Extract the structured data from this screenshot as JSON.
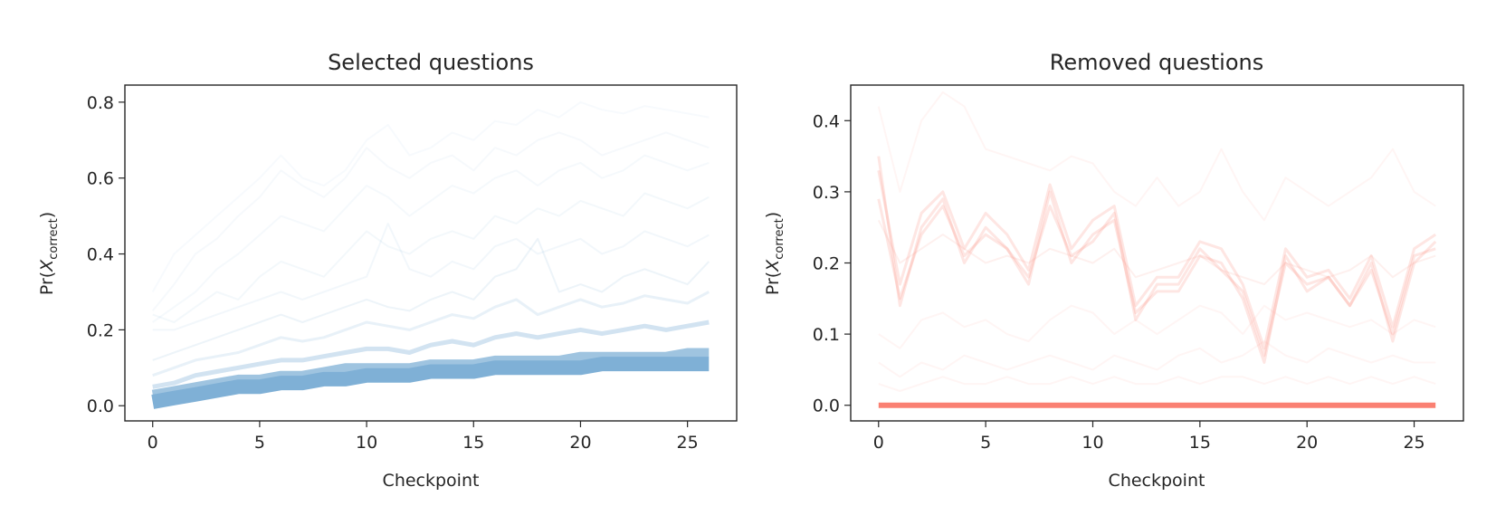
{
  "chart_data": [
    {
      "type": "line",
      "title": "Selected questions",
      "xlabel": "Checkpoint",
      "ylabel": {
        "prefix": "Pr(",
        "var": "X",
        "sub": "correct",
        "suffix": ")"
      },
      "xlim": [
        -1.3,
        27.3
      ],
      "ylim": [
        -0.04,
        0.845
      ],
      "xticks": [
        0,
        5,
        10,
        15,
        20,
        25
      ],
      "xtick_labels": [
        "0",
        "5",
        "10",
        "15",
        "20",
        "25"
      ],
      "yticks": [
        0.0,
        0.2,
        0.4,
        0.6,
        0.8
      ],
      "ytick_labels": [
        "0.0",
        "0.2",
        "0.4",
        "0.6",
        "0.8"
      ],
      "color": "#7fb0d6",
      "x": [
        0,
        1,
        2,
        3,
        4,
        5,
        6,
        7,
        8,
        9,
        10,
        11,
        12,
        13,
        14,
        15,
        16,
        17,
        18,
        19,
        20,
        21,
        22,
        23,
        24,
        25,
        26
      ],
      "series": [
        {
          "values": [
            0.3,
            0.4,
            0.45,
            0.5,
            0.55,
            0.6,
            0.66,
            0.6,
            0.58,
            0.62,
            0.7,
            0.74,
            0.66,
            0.68,
            0.72,
            0.7,
            0.75,
            0.74,
            0.78,
            0.76,
            0.8,
            0.78,
            0.77,
            0.79,
            0.78,
            0.77,
            0.76
          ]
        },
        {
          "values": [
            0.25,
            0.32,
            0.4,
            0.44,
            0.5,
            0.55,
            0.62,
            0.58,
            0.55,
            0.6,
            0.68,
            0.63,
            0.6,
            0.64,
            0.66,
            0.62,
            0.68,
            0.66,
            0.7,
            0.72,
            0.7,
            0.66,
            0.68,
            0.7,
            0.72,
            0.7,
            0.68
          ]
        },
        {
          "values": [
            0.22,
            0.26,
            0.3,
            0.36,
            0.4,
            0.45,
            0.5,
            0.48,
            0.46,
            0.52,
            0.58,
            0.55,
            0.5,
            0.54,
            0.58,
            0.56,
            0.6,
            0.62,
            0.58,
            0.62,
            0.64,
            0.6,
            0.62,
            0.66,
            0.64,
            0.62,
            0.64
          ]
        },
        {
          "values": [
            0.24,
            0.22,
            0.26,
            0.3,
            0.28,
            0.34,
            0.38,
            0.36,
            0.34,
            0.4,
            0.46,
            0.42,
            0.4,
            0.44,
            0.46,
            0.44,
            0.5,
            0.48,
            0.52,
            0.5,
            0.54,
            0.52,
            0.5,
            0.56,
            0.54,
            0.52,
            0.55
          ]
        },
        {
          "values": [
            0.2,
            0.2,
            0.22,
            0.24,
            0.26,
            0.28,
            0.3,
            0.28,
            0.3,
            0.32,
            0.34,
            0.48,
            0.36,
            0.34,
            0.38,
            0.36,
            0.42,
            0.44,
            0.4,
            0.42,
            0.44,
            0.4,
            0.42,
            0.46,
            0.44,
            0.42,
            0.45
          ]
        },
        {
          "values": [
            0.12,
            0.14,
            0.16,
            0.18,
            0.2,
            0.22,
            0.24,
            0.22,
            0.24,
            0.26,
            0.28,
            0.26,
            0.25,
            0.28,
            0.3,
            0.28,
            0.34,
            0.36,
            0.44,
            0.3,
            0.32,
            0.3,
            0.34,
            0.36,
            0.34,
            0.32,
            0.38
          ]
        },
        {
          "values": [
            0.08,
            0.1,
            0.12,
            0.13,
            0.14,
            0.16,
            0.18,
            0.17,
            0.18,
            0.2,
            0.22,
            0.21,
            0.2,
            0.22,
            0.24,
            0.23,
            0.26,
            0.28,
            0.24,
            0.26,
            0.28,
            0.26,
            0.27,
            0.29,
            0.28,
            0.27,
            0.3
          ]
        },
        {
          "values": [
            0.05,
            0.06,
            0.08,
            0.09,
            0.1,
            0.11,
            0.12,
            0.12,
            0.13,
            0.14,
            0.15,
            0.15,
            0.14,
            0.16,
            0.17,
            0.16,
            0.18,
            0.19,
            0.18,
            0.19,
            0.2,
            0.19,
            0.2,
            0.21,
            0.2,
            0.21,
            0.22
          ]
        },
        {
          "values": [
            0.03,
            0.04,
            0.05,
            0.06,
            0.07,
            0.07,
            0.08,
            0.08,
            0.09,
            0.1,
            0.1,
            0.1,
            0.1,
            0.11,
            0.11,
            0.11,
            0.12,
            0.12,
            0.12,
            0.12,
            0.13,
            0.13,
            0.13,
            0.13,
            0.13,
            0.14,
            0.14
          ]
        },
        {
          "values": [
            0.01,
            0.02,
            0.03,
            0.04,
            0.05,
            0.05,
            0.06,
            0.06,
            0.07,
            0.07,
            0.08,
            0.08,
            0.08,
            0.09,
            0.09,
            0.09,
            0.1,
            0.1,
            0.1,
            0.1,
            0.1,
            0.11,
            0.11,
            0.11,
            0.11,
            0.11,
            0.11
          ]
        }
      ]
    },
    {
      "type": "line",
      "title": "Removed questions",
      "xlabel": "Checkpoint",
      "ylabel": {
        "prefix": "Pr(",
        "var": "X",
        "sub": "correct",
        "suffix": ")"
      },
      "xlim": [
        -1.3,
        27.3
      ],
      "ylim": [
        -0.022,
        0.45
      ],
      "xticks": [
        0,
        5,
        10,
        15,
        20,
        25
      ],
      "xtick_labels": [
        "0",
        "5",
        "10",
        "15",
        "20",
        "25"
      ],
      "yticks": [
        0.0,
        0.1,
        0.2,
        0.3,
        0.4
      ],
      "ytick_labels": [
        "0.0",
        "0.1",
        "0.2",
        "0.3",
        "0.4"
      ],
      "color": "#fa8072",
      "x": [
        0,
        1,
        2,
        3,
        4,
        5,
        6,
        7,
        8,
        9,
        10,
        11,
        12,
        13,
        14,
        15,
        16,
        17,
        18,
        19,
        20,
        21,
        22,
        23,
        24,
        25,
        26
      ],
      "series": [
        {
          "values": [
            0.42,
            0.3,
            0.4,
            0.44,
            0.42,
            0.36,
            0.35,
            0.34,
            0.33,
            0.35,
            0.34,
            0.3,
            0.28,
            0.32,
            0.28,
            0.3,
            0.36,
            0.3,
            0.26,
            0.32,
            0.3,
            0.28,
            0.3,
            0.32,
            0.36,
            0.3,
            0.28
          ]
        },
        {
          "values": [
            0.35,
            0.14,
            0.25,
            0.29,
            0.2,
            0.25,
            0.22,
            0.17,
            0.3,
            0.2,
            0.24,
            0.26,
            0.13,
            0.16,
            0.16,
            0.21,
            0.2,
            0.15,
            0.06,
            0.21,
            0.16,
            0.18,
            0.14,
            0.2,
            0.09,
            0.2,
            0.23
          ]
        },
        {
          "values": [
            0.33,
            0.17,
            0.27,
            0.3,
            0.22,
            0.27,
            0.24,
            0.19,
            0.31,
            0.22,
            0.26,
            0.28,
            0.14,
            0.18,
            0.18,
            0.23,
            0.22,
            0.17,
            0.08,
            0.22,
            0.18,
            0.19,
            0.15,
            0.21,
            0.11,
            0.22,
            0.24
          ]
        },
        {
          "values": [
            0.29,
            0.15,
            0.24,
            0.28,
            0.21,
            0.24,
            0.22,
            0.18,
            0.28,
            0.21,
            0.23,
            0.27,
            0.12,
            0.17,
            0.17,
            0.22,
            0.19,
            0.16,
            0.07,
            0.2,
            0.17,
            0.18,
            0.14,
            0.19,
            0.1,
            0.21,
            0.22
          ]
        },
        {
          "values": [
            0.26,
            0.2,
            0.22,
            0.24,
            0.22,
            0.2,
            0.21,
            0.2,
            0.22,
            0.21,
            0.2,
            0.22,
            0.18,
            0.19,
            0.2,
            0.21,
            0.19,
            0.18,
            0.17,
            0.2,
            0.19,
            0.18,
            0.19,
            0.21,
            0.18,
            0.2,
            0.21
          ]
        },
        {
          "values": [
            0.1,
            0.08,
            0.12,
            0.13,
            0.11,
            0.12,
            0.1,
            0.09,
            0.12,
            0.14,
            0.13,
            0.1,
            0.12,
            0.1,
            0.12,
            0.14,
            0.13,
            0.1,
            0.14,
            0.12,
            0.13,
            0.12,
            0.11,
            0.12,
            0.1,
            0.12,
            0.11
          ]
        },
        {
          "values": [
            0.06,
            0.04,
            0.06,
            0.05,
            0.07,
            0.06,
            0.05,
            0.06,
            0.07,
            0.06,
            0.05,
            0.07,
            0.06,
            0.05,
            0.07,
            0.08,
            0.06,
            0.07,
            0.09,
            0.07,
            0.06,
            0.08,
            0.07,
            0.06,
            0.07,
            0.06,
            0.06
          ]
        },
        {
          "values": [
            0.03,
            0.02,
            0.03,
            0.04,
            0.03,
            0.03,
            0.04,
            0.03,
            0.03,
            0.04,
            0.03,
            0.04,
            0.03,
            0.03,
            0.04,
            0.03,
            0.04,
            0.04,
            0.03,
            0.04,
            0.03,
            0.04,
            0.03,
            0.04,
            0.03,
            0.04,
            0.03
          ]
        },
        {
          "values": [
            0.0,
            0.0,
            0.0,
            0.0,
            0.0,
            0.0,
            0.0,
            0.0,
            0.0,
            0.0,
            0.0,
            0.0,
            0.0,
            0.0,
            0.0,
            0.0,
            0.0,
            0.0,
            0.0,
            0.0,
            0.0,
            0.0,
            0.0,
            0.0,
            0.0,
            0.0,
            0.0
          ]
        }
      ]
    }
  ]
}
